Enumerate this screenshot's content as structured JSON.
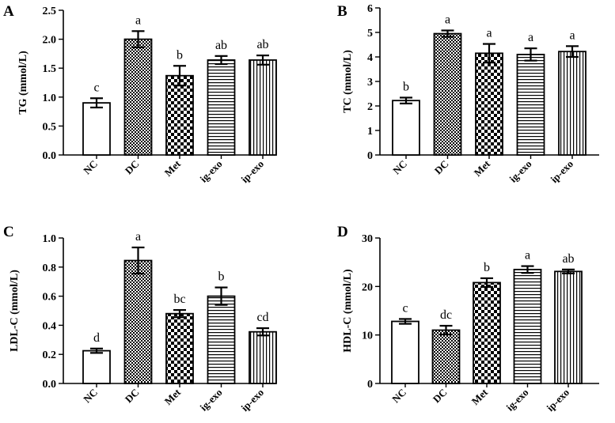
{
  "chart_data": [
    {
      "type": "bar",
      "panel_label": "A",
      "ylabel": "TG (mmol/L)",
      "xlabel": "",
      "categories": [
        "NC",
        "DC",
        "Met",
        "ig-exo",
        "ip-exo"
      ],
      "values": [
        0.9,
        2.0,
        1.37,
        1.64,
        1.64
      ],
      "errors": [
        0.08,
        0.14,
        0.17,
        0.07,
        0.08
      ],
      "significance": [
        "c",
        "a",
        "b",
        "ab",
        "ab"
      ],
      "ylim": [
        0,
        2.5
      ],
      "yticks": [
        "0.0",
        "0.5",
        "1.0",
        "1.5",
        "2.0",
        "2.5"
      ],
      "patterns": [
        "solid-white",
        "dense-check",
        "checker",
        "horizontal-lines",
        "vertical-lines"
      ]
    },
    {
      "type": "bar",
      "panel_label": "B",
      "ylabel": "TC (mmol/L)",
      "xlabel": "",
      "categories": [
        "NC",
        "DC",
        "Met",
        "ig-exo",
        "ip-exo"
      ],
      "values": [
        2.22,
        4.95,
        4.15,
        4.1,
        4.22
      ],
      "errors": [
        0.12,
        0.13,
        0.38,
        0.25,
        0.22
      ],
      "significance": [
        "b",
        "a",
        "a",
        "a",
        "a"
      ],
      "ylim": [
        0,
        6
      ],
      "yticks": [
        "0",
        "1",
        "2",
        "3",
        "4",
        "5",
        "6"
      ],
      "patterns": [
        "solid-white",
        "dense-check",
        "checker",
        "horizontal-lines",
        "vertical-lines"
      ]
    },
    {
      "type": "bar",
      "panel_label": "C",
      "ylabel": "LDL-C (mmol/L)",
      "xlabel": "",
      "categories": [
        "NC",
        "DC",
        "Met",
        "ig-exo",
        "ip-exo"
      ],
      "values": [
        0.225,
        0.845,
        0.48,
        0.6,
        0.355
      ],
      "errors": [
        0.015,
        0.09,
        0.025,
        0.06,
        0.025
      ],
      "significance": [
        "d",
        "a",
        "bc",
        "b",
        "cd"
      ],
      "ylim": [
        0,
        1.0
      ],
      "yticks": [
        "0.0",
        "0.2",
        "0.4",
        "0.6",
        "0.8",
        "1.0"
      ],
      "patterns": [
        "solid-white",
        "dense-check",
        "checker",
        "horizontal-lines",
        "vertical-lines"
      ]
    },
    {
      "type": "bar",
      "panel_label": "D",
      "ylabel": "HDL-C (mmol/L)",
      "xlabel": "",
      "categories": [
        "NC",
        "DC",
        "Met",
        "ig-exo",
        "ip-exo"
      ],
      "values": [
        12.8,
        11.0,
        20.8,
        23.5,
        23.1
      ],
      "errors": [
        0.5,
        0.9,
        0.9,
        0.7,
        0.4
      ],
      "significance": [
        "c",
        "dc",
        "b",
        "a",
        "ab"
      ],
      "ylim": [
        0,
        30
      ],
      "yticks": [
        "0",
        "10",
        "20",
        "30"
      ],
      "patterns": [
        "solid-white",
        "dense-check",
        "checker",
        "horizontal-lines",
        "vertical-lines"
      ]
    }
  ]
}
